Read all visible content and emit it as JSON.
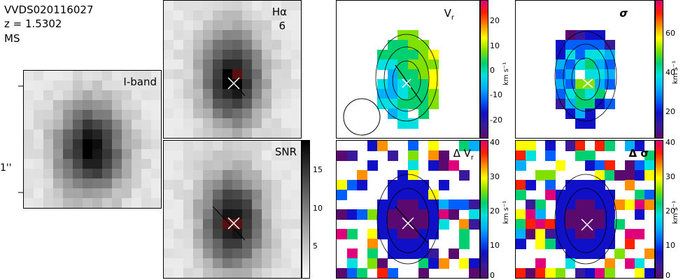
{
  "header": {
    "object_id": "VVDS020116027",
    "redshift": "z = 1.5302",
    "class": "MS"
  },
  "scale_bar": {
    "label": "1''"
  },
  "panels": {
    "iband": {
      "label": "I-band"
    },
    "halpha": {
      "label": "Hα",
      "sublabel": "6"
    },
    "snr": {
      "label": "SNR",
      "ticks": [
        "5",
        "10",
        "15"
      ]
    },
    "vr": {
      "label": "V",
      "label_sub": "r",
      "ticks": [
        "-20",
        "-10",
        "0",
        "10",
        "20"
      ],
      "unit": "km s⁻¹"
    },
    "sigma": {
      "label": "σ",
      "ticks": [
        "20",
        "40",
        "60"
      ],
      "unit": "km s⁻¹"
    },
    "dvr": {
      "label": "Δ V",
      "label_sub": "r",
      "ticks": [
        "0",
        "10",
        "20",
        "30",
        "40"
      ],
      "unit": "km s⁻¹"
    },
    "dsigma": {
      "label": "Δ σ",
      "ticks": [
        "0",
        "10",
        "20",
        "30",
        "40"
      ],
      "unit": "km s⁻¹"
    }
  },
  "colors": {
    "rainbow": [
      "#5a0a6e",
      "#3a1a9a",
      "#1010c8",
      "#0060ff",
      "#00b0ff",
      "#00e0e0",
      "#00d070",
      "#80e000",
      "#ffff00",
      "#ff9000",
      "#ff2000",
      "#e0007a"
    ]
  }
}
